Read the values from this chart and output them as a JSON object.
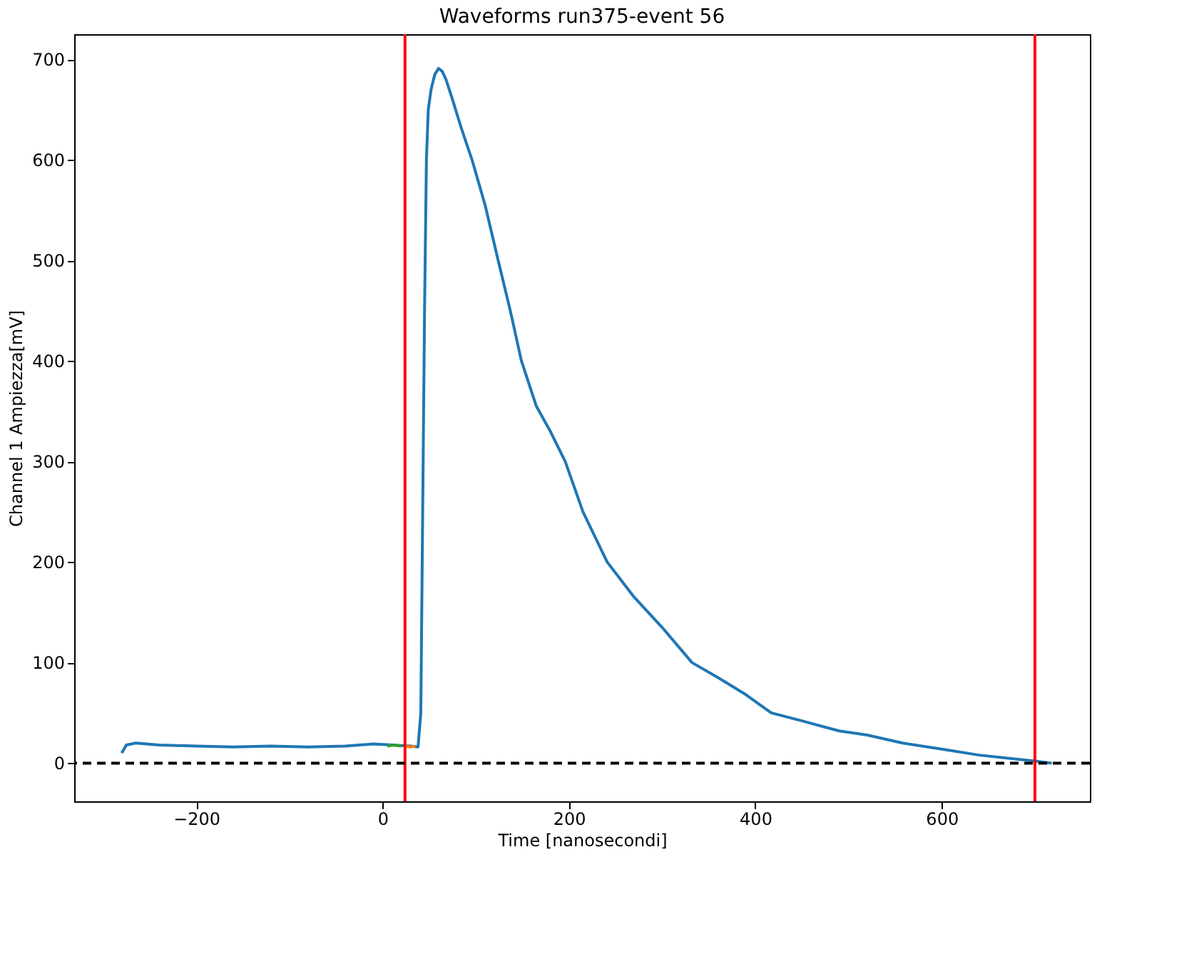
{
  "chart_data": {
    "type": "line",
    "title": "Waveforms run375-event 56",
    "xlabel": "Time [nanosecondi]",
    "ylabel": "Channel 1 Ampiezza[mV]",
    "xlim": [
      -331,
      759
    ],
    "ylim": [
      -38,
      725
    ],
    "xticks": [
      -200,
      0,
      200,
      400,
      600
    ],
    "yticks": [
      0,
      100,
      200,
      300,
      400,
      500,
      600,
      700
    ],
    "grid": false,
    "line_style": "solid",
    "marker": "none",
    "series": [
      {
        "color": "#1f77b4",
        "x": [
          -280,
          -275,
          -265,
          -240,
          -200,
          -160,
          -120,
          -80,
          -40,
          -10,
          10,
          30,
          38,
          41,
          43,
          45,
          47,
          49,
          52,
          56,
          60,
          64,
          68,
          75,
          85,
          96,
          110,
          124,
          137,
          149,
          165,
          180,
          196,
          215,
          241,
          270,
          300,
          332,
          360,
          390,
          417,
          450,
          490,
          520,
          558,
          600,
          640,
          680,
          700,
          718
        ],
        "values": [
          10,
          18,
          20,
          18,
          17,
          16,
          17,
          16,
          17,
          19,
          18,
          17,
          16,
          50,
          250,
          450,
          600,
          650,
          670,
          685,
          691,
          688,
          680,
          660,
          630,
          600,
          555,
          500,
          450,
          400,
          355,
          330,
          300,
          250,
          200,
          165,
          135,
          100,
          85,
          68,
          50,
          42,
          32,
          28,
          20,
          14,
          8,
          4,
          2,
          0
        ]
      },
      {
        "color": "#2ca02c",
        "x": [
          5,
          12,
          20
        ],
        "values": [
          17,
          18,
          17
        ]
      },
      {
        "color": "#ff7f0e",
        "x": [
          25,
          30,
          35
        ],
        "values": [
          17,
          16,
          17
        ]
      }
    ],
    "ref_lines": [
      {
        "axis": "x",
        "value": 24,
        "color": "#ff0000",
        "line_style": "solid"
      },
      {
        "axis": "x",
        "value": 700,
        "color": "#ff0000",
        "line_style": "solid"
      },
      {
        "axis": "y",
        "value": 0,
        "color": "#000000",
        "line_style": "dashed"
      }
    ]
  }
}
